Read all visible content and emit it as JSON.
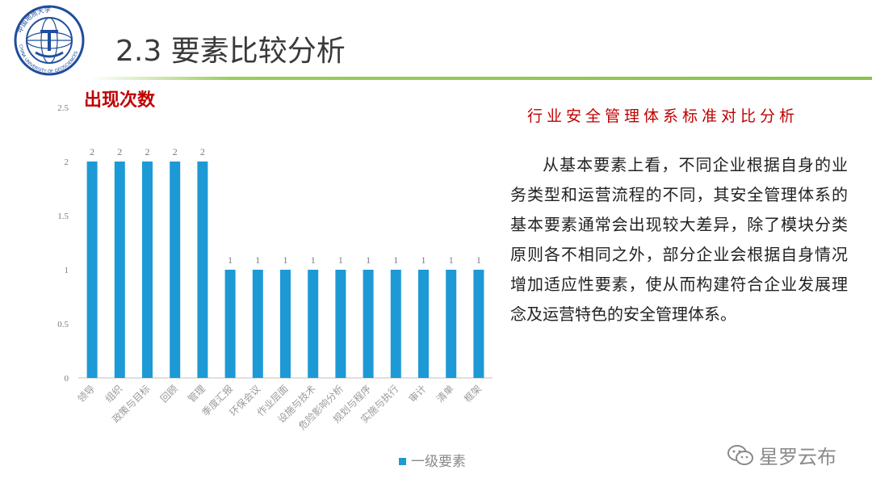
{
  "header": {
    "title": "2.3 要素比较分析",
    "logo_text": "中国地质大学 CHINA UNIVERSITY OF GEOSCIENCES"
  },
  "chart_data": {
    "type": "bar",
    "ylabel": "出现次数",
    "ylim": [
      0,
      2.5
    ],
    "yticks": [
      "0",
      "0.5",
      "1",
      "1.5",
      "2",
      "2.5"
    ],
    "categories": [
      "领导",
      "组织",
      "政策与目标",
      "回顾",
      "管理",
      "季度汇报",
      "环保会议",
      "作业层面",
      "设施与技术",
      "危险影响分析",
      "规划与程序",
      "实施与执行",
      "审计",
      "清单",
      "框架"
    ],
    "series": [
      {
        "name": "一级要素",
        "values": [
          2,
          2,
          2,
          2,
          2,
          1,
          1,
          1,
          1,
          1,
          1,
          1,
          1,
          1,
          1
        ],
        "color": "#1d9ad6"
      }
    ],
    "grid": false,
    "legend": "bottom"
  },
  "panel": {
    "title": "行业安全管理体系标准对比分析",
    "body": "从基本要素上看，不同企业根据自身的业务类型和运营流程的不同，其安全管理体系的基本要素通常会出现较大差异，除了模块分类原则各不相同之外，部分企业会根据自身情况增加适应性要素，使从而构建符合企业发展理念及运营特色的安全管理体系。"
  },
  "watermark": {
    "text": "星罗云布",
    "icon": "wechat-icon"
  }
}
